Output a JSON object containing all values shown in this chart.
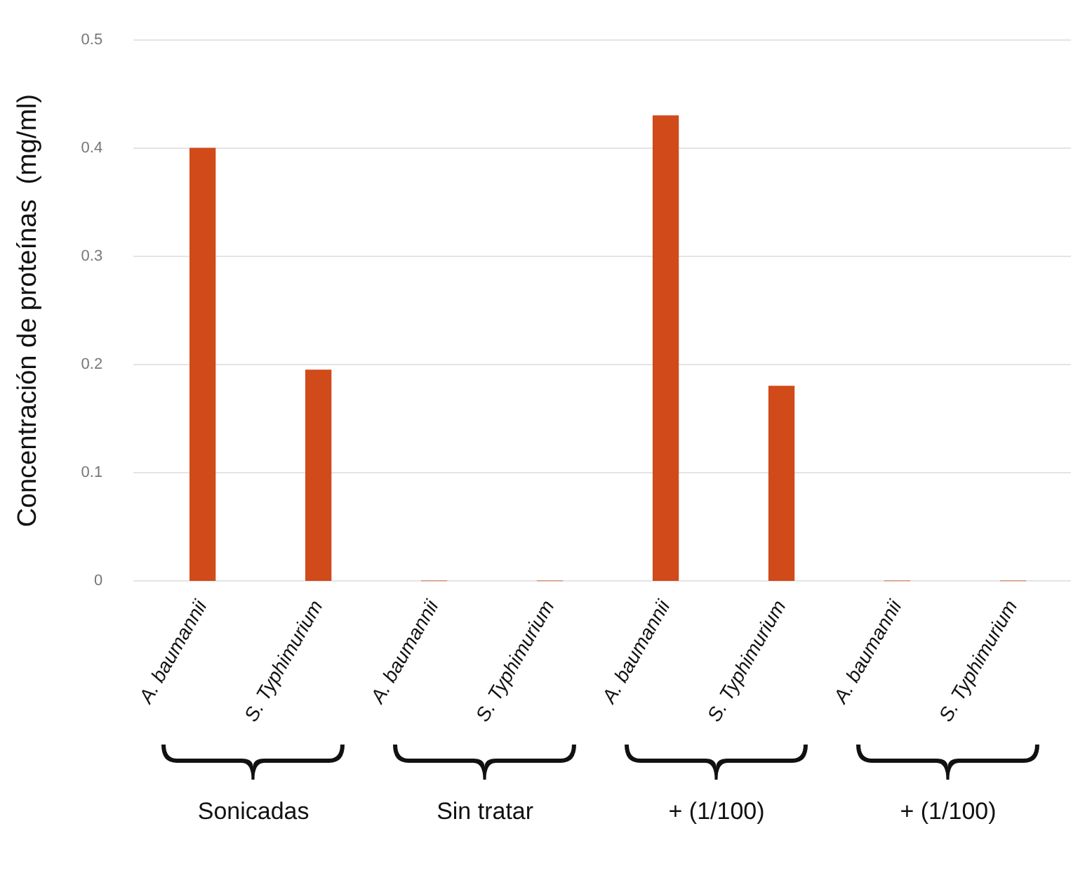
{
  "chart_data": {
    "type": "bar",
    "ylabel": "Concentración de proteínas  (mg/ml)",
    "categories": [
      "A. baumannii",
      "S. Typhimurium",
      "A. baumannii",
      "S. Typhimurium",
      "A. baumannii",
      "S. Typhimurium",
      "A. baumannii",
      "S. Typhimurium"
    ],
    "values": [
      0.4,
      0.195,
      0,
      0,
      0.43,
      0.18,
      0,
      0
    ],
    "color": "#d04a1a",
    "ylim": [
      0,
      0.5
    ],
    "yticks": [
      0,
      0.1,
      0.2,
      0.3,
      0.4,
      0.5
    ],
    "grid": "y",
    "legend": false,
    "annotations": [
      "Sonicadas",
      "Sin tratar",
      "+ (1/100)",
      "+ (1/100)"
    ]
  }
}
